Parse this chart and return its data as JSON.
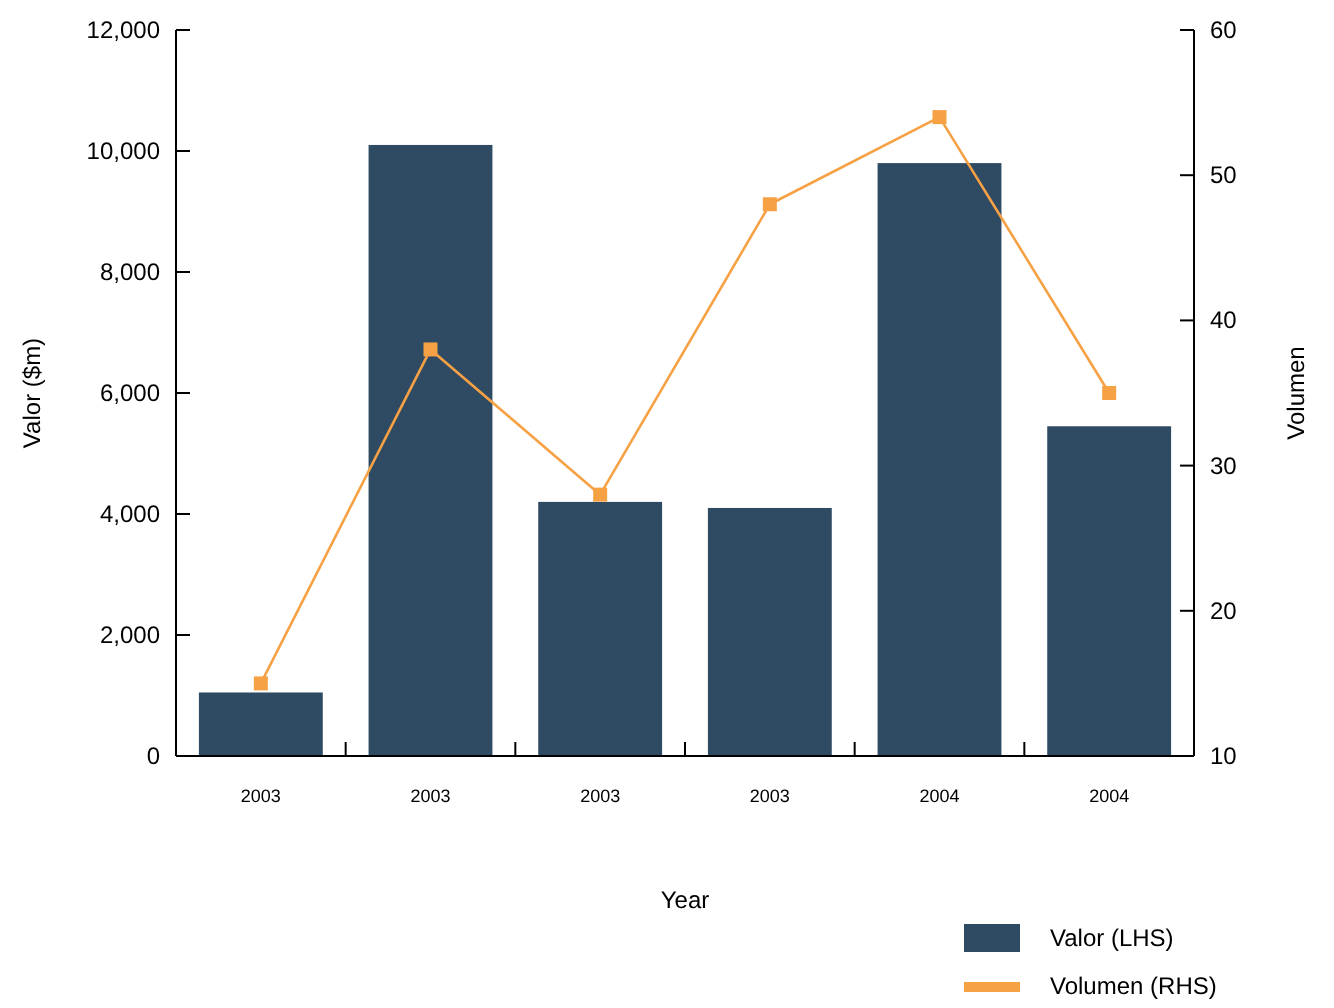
{
  "chart_data": {
    "type": "bar",
    "xlabel": "Year",
    "ylabel": "Valor ($m)",
    "y2label": "Volumen",
    "categories": [
      "2003",
      "2003",
      "2003",
      "2003",
      "2004",
      "2004"
    ],
    "series": [
      {
        "name": "Valor (LHS)",
        "color": "#2f4a63",
        "values": [
          1050,
          10100,
          4200,
          4100,
          9800,
          5450
        ]
      },
      {
        "name": "Volumen (RHS)",
        "type": "line",
        "axis": "y2",
        "color": "#f7a145",
        "values": [
          15,
          38,
          28,
          48,
          54,
          35
        ]
      }
    ],
    "ylim": [
      0,
      12000
    ],
    "yticks": [
      {
        "value": 0,
        "label": "0"
      },
      {
        "value": 2000,
        "label": "2,000"
      },
      {
        "value": 4000,
        "label": "4,000"
      },
      {
        "value": 6000,
        "label": "6,000"
      },
      {
        "value": 8000,
        "label": "8,000"
      },
      {
        "value": 10000,
        "label": "10,000"
      },
      {
        "value": 12000,
        "label": "12,000"
      }
    ],
    "y2lim": [
      10,
      60
    ],
    "y2ticks": [
      10,
      20,
      30,
      40,
      50,
      60
    ],
    "marker": "square",
    "grid": false,
    "legend": "bottom right"
  }
}
